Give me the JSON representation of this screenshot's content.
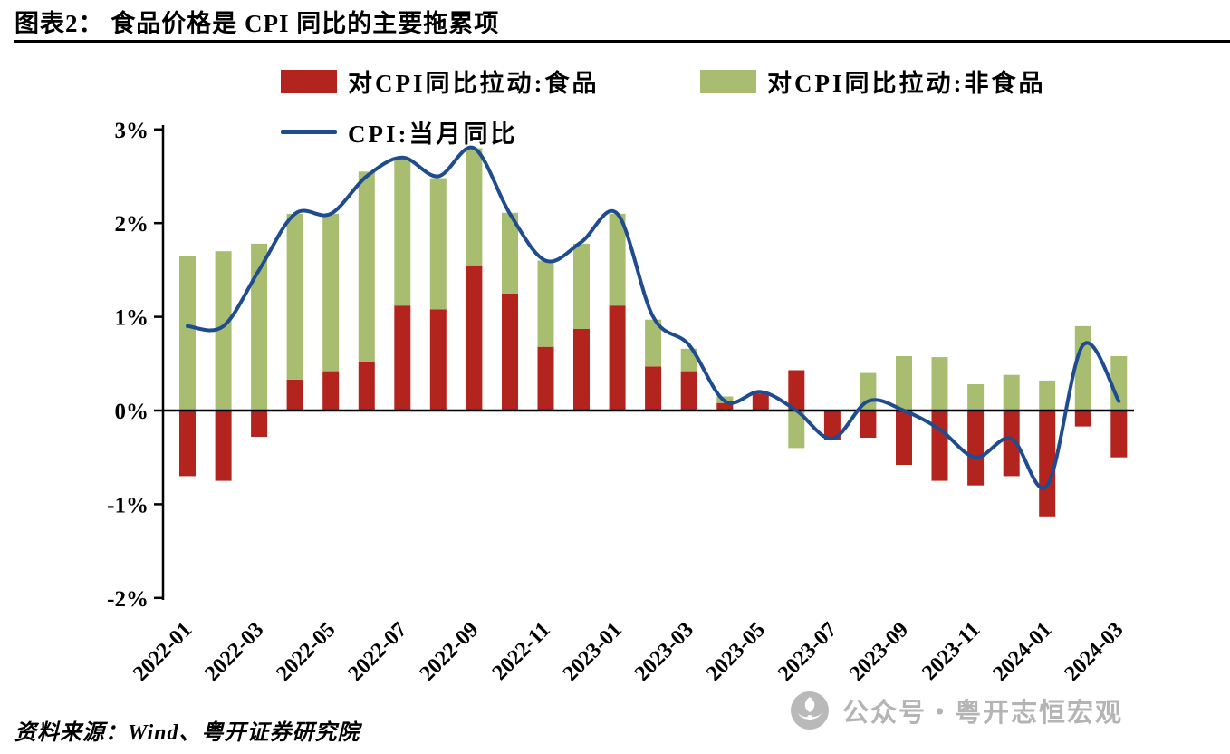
{
  "header": {
    "title": "图表2： 食品价格是 CPI 同比的主要拖累项"
  },
  "legend": {
    "food": "对CPI同比拉动:食品",
    "nonfood": "对CPI同比拉动:非食品",
    "cpi": "CPI:当月同比"
  },
  "source": "资料来源：Wind、粤开证券研究院",
  "watermark": "公众号・粤开志恒宏观",
  "colors": {
    "food_bar": "#b3241f",
    "nonfood_bar": "#a9bd70",
    "cpi_line": "#1f4c8f",
    "axis": "#000000",
    "watermark": "#b4b4b4"
  },
  "chart_data": {
    "type": "bar",
    "subtype": "stacked bars with line overlay",
    "categories": [
      "2022-01",
      "2022-02",
      "2022-03",
      "2022-04",
      "2022-05",
      "2022-06",
      "2022-07",
      "2022-08",
      "2022-09",
      "2022-10",
      "2022-11",
      "2022-12",
      "2023-01",
      "2023-02",
      "2023-03",
      "2023-04",
      "2023-05",
      "2023-06",
      "2023-07",
      "2023-08",
      "2023-09",
      "2023-10",
      "2023-11",
      "2023-12",
      "2024-01",
      "2024-02",
      "2024-03"
    ],
    "x_tick_labels": [
      "2022-01",
      "2022-03",
      "2022-05",
      "2022-07",
      "2022-09",
      "2022-11",
      "2023-01",
      "2023-03",
      "2023-05",
      "2023-07",
      "2023-09",
      "2023-11",
      "2024-01",
      "2024-03"
    ],
    "series": [
      {
        "name": "对CPI同比拉动:食品",
        "type": "bar",
        "color": "#b3241f",
        "values": [
          -0.7,
          -0.75,
          -0.28,
          0.33,
          0.42,
          0.52,
          1.12,
          1.08,
          1.55,
          1.25,
          0.68,
          0.87,
          1.12,
          0.47,
          0.42,
          0.08,
          0.18,
          0.43,
          -0.31,
          -0.29,
          -0.58,
          -0.75,
          -0.8,
          -0.7,
          -1.13,
          -0.17,
          -0.5
        ]
      },
      {
        "name": "对CPI同比拉动:非食品",
        "type": "bar",
        "color": "#a9bd70",
        "values": [
          1.65,
          1.7,
          1.78,
          1.77,
          1.68,
          2.03,
          1.58,
          1.4,
          1.25,
          0.86,
          0.92,
          0.91,
          0.98,
          0.5,
          0.24,
          0.07,
          0.02,
          -0.4,
          0.0,
          0.4,
          0.58,
          0.57,
          0.28,
          0.38,
          0.32,
          0.9,
          0.58
        ]
      },
      {
        "name": "CPI:当月同比",
        "type": "line",
        "color": "#1f4c8f",
        "values": [
          0.9,
          0.9,
          1.5,
          2.1,
          2.1,
          2.5,
          2.7,
          2.5,
          2.8,
          2.1,
          1.6,
          1.8,
          2.1,
          1.0,
          0.7,
          0.1,
          0.2,
          0.0,
          -0.3,
          0.1,
          0.0,
          -0.2,
          -0.5,
          -0.3,
          -0.8,
          0.7,
          0.1
        ]
      }
    ],
    "stacked": true,
    "ylim": [
      -2,
      3
    ],
    "y_ticks": [
      "3%",
      "2%",
      "1%",
      "0%",
      "-1%",
      "-2%"
    ],
    "y_tick_values": [
      3,
      2,
      1,
      0,
      -1,
      -2
    ],
    "grid": false,
    "legend_position": "top",
    "unit": "%"
  }
}
